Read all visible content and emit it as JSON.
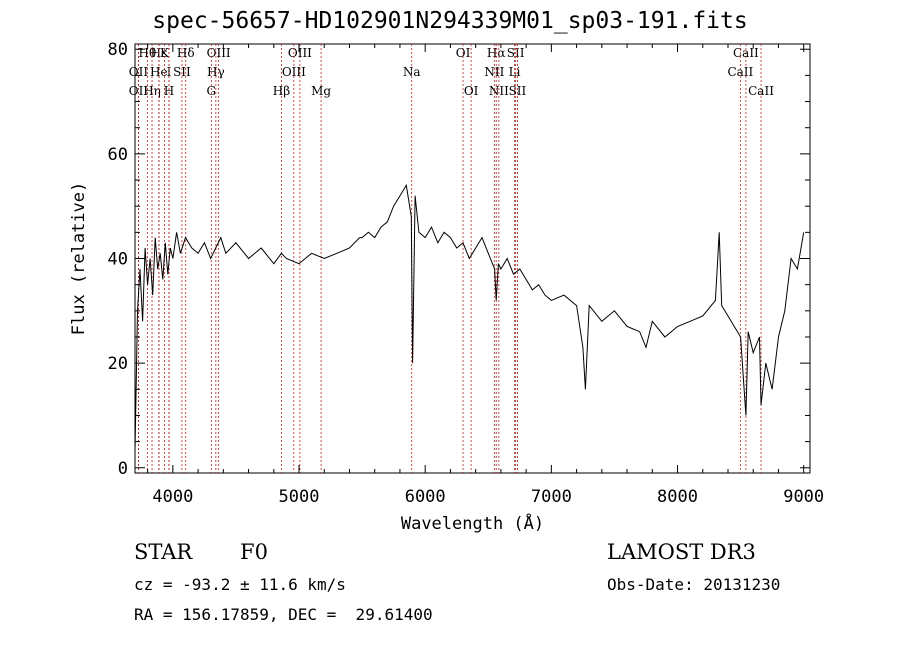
{
  "title": "spec-56657-HD102901N294339M01_sp03-191.fits",
  "info": {
    "class": "STAR",
    "subclass": "F0",
    "survey": "LAMOST DR3",
    "cz": "cz = -93.2 ± 11.6 km/s",
    "obs_date": "Obs-Date: 20131230",
    "radec": "RA = 156.17859, DEC =  29.61400"
  },
  "chart_data": {
    "type": "line",
    "xlabel": "Wavelength (Å)",
    "ylabel": "Flux (relative)",
    "xlim": [
      3700,
      9050
    ],
    "ylim": [
      -1,
      81
    ],
    "xticks": [
      4000,
      5000,
      6000,
      7000,
      8000,
      9000
    ],
    "yticks": [
      0,
      20,
      40,
      60,
      80
    ],
    "line_color": "#000000",
    "marker_color": "#b22222",
    "series": [
      {
        "x": [
          3700,
          3720,
          3740,
          3760,
          3780,
          3800,
          3820,
          3840,
          3860,
          3880,
          3900,
          3920,
          3940,
          3960,
          3980,
          4000,
          4030,
          4060,
          4100,
          4150,
          4200,
          4250,
          4300,
          4340,
          4380,
          4420,
          4500,
          4600,
          4700,
          4800,
          4860,
          4900,
          5000,
          5100,
          5200,
          5300,
          5400,
          5480,
          5500,
          5550,
          5600,
          5650,
          5700,
          5750,
          5800,
          5850,
          5890,
          5900,
          5920,
          5950,
          6000,
          6050,
          6100,
          6150,
          6200,
          6250,
          6300,
          6350,
          6400,
          6450,
          6500,
          6550,
          6563,
          6580,
          6600,
          6650,
          6700,
          6750,
          6800,
          6850,
          6900,
          6950,
          7000,
          7100,
          7200,
          7250,
          7270,
          7300,
          7400,
          7500,
          7600,
          7700,
          7750,
          7800,
          7900,
          8000,
          8100,
          8200,
          8300,
          8330,
          8350,
          8400,
          8450,
          8500,
          8542,
          8560,
          8600,
          8650,
          8662,
          8700,
          8750,
          8800,
          8850,
          8900,
          8950,
          9000
        ],
        "y": [
          3,
          30,
          38,
          28,
          42,
          35,
          40,
          33,
          44,
          38,
          41,
          36,
          43,
          37,
          42,
          40,
          45,
          41,
          44,
          42,
          41,
          43,
          40,
          42,
          44,
          41,
          43,
          40,
          42,
          39,
          41,
          40,
          39,
          41,
          40,
          41,
          42,
          44,
          44,
          45,
          44,
          46,
          47,
          50,
          52,
          54,
          48,
          20,
          52,
          45,
          44,
          46,
          43,
          45,
          44,
          42,
          43,
          40,
          42,
          44,
          41,
          38,
          32,
          39,
          38,
          40,
          37,
          38,
          36,
          34,
          35,
          33,
          32,
          33,
          31,
          23,
          15,
          31,
          28,
          30,
          27,
          26,
          23,
          28,
          25,
          27,
          28,
          29,
          32,
          45,
          31,
          29,
          27,
          25,
          10,
          26,
          22,
          25,
          12,
          20,
          15,
          25,
          30,
          40,
          38,
          45
        ]
      }
    ],
    "lines": [
      {
        "label": "Hθ",
        "wave": 3798,
        "row": 1
      },
      {
        "label": "OII",
        "wave": 3727,
        "row": 2
      },
      {
        "label": "OII",
        "wave": 3727,
        "row": 3
      },
      {
        "label": "Hε",
        "wave": 3890,
        "row": 1
      },
      {
        "label": "Hη",
        "wave": 3835,
        "row": 3
      },
      {
        "label": "He",
        "wave": 3889,
        "row": 2
      },
      {
        "label": "K",
        "wave": 3934,
        "row": 1
      },
      {
        "label": "I",
        "wave": 3969,
        "row": 2
      },
      {
        "label": "H",
        "wave": 3969,
        "row": 3
      },
      {
        "label": "Hδ",
        "wave": 4102,
        "row": 1
      },
      {
        "label": "SII",
        "wave": 4072,
        "row": 2
      },
      {
        "label": "OIII",
        "wave": 4363,
        "row": 1
      },
      {
        "label": "Hγ",
        "wave": 4341,
        "row": 2
      },
      {
        "label": "G",
        "wave": 4305,
        "row": 3
      },
      {
        "label": "Hβ",
        "wave": 4861,
        "row": 3
      },
      {
        "label": "OIII",
        "wave": 5007,
        "row": 1
      },
      {
        "label": "OIII",
        "wave": 4959,
        "row": 2
      },
      {
        "label": "Mg",
        "wave": 5175,
        "row": 3
      },
      {
        "label": "Na",
        "wave": 5893,
        "row": 2
      },
      {
        "label": "OI",
        "wave": 6300,
        "row": 1
      },
      {
        "label": "OI",
        "wave": 6364,
        "row": 3
      },
      {
        "label": "Hα",
        "wave": 6563,
        "row": 1
      },
      {
        "label": "NII",
        "wave": 6548,
        "row": 2
      },
      {
        "label": "NII",
        "wave": 6584,
        "row": 3
      },
      {
        "label": "SII",
        "wave": 6717,
        "row": 1
      },
      {
        "label": "Li",
        "wave": 6708,
        "row": 2
      },
      {
        "label": "SII",
        "wave": 6731,
        "row": 3
      },
      {
        "label": "CaII",
        "wave": 8542,
        "row": 1
      },
      {
        "label": "CaII",
        "wave": 8498,
        "row": 2
      },
      {
        "label": "CaII",
        "wave": 8662,
        "row": 3
      }
    ]
  }
}
